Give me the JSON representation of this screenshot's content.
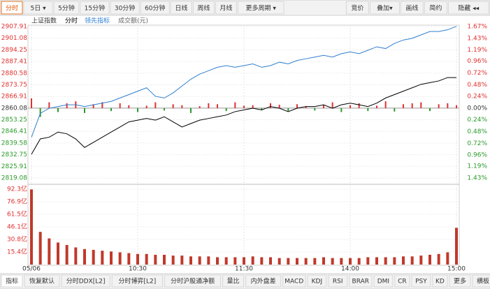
{
  "toolbar": {
    "left": [
      "分时",
      "5日 ▾",
      "5分钟",
      "15分钟",
      "30分钟",
      "60分钟",
      "日线",
      "周线",
      "月线",
      "更多周期 ▾"
    ],
    "right": [
      "竞价",
      "叠加▾",
      "画线",
      "简约",
      "隐藏 ◂◂"
    ]
  },
  "tabs": [
    "指标",
    "恢复默认",
    "分时DDX[L2]",
    "分时博弈[L2]",
    "分时沪股通净额",
    "量比",
    "内外盘差",
    "MACD",
    "KDJ",
    "RSI",
    "BRAR",
    "DMI",
    "CR",
    "PSY",
    "KD",
    "更多",
    "横板"
  ],
  "chart_data": {
    "type": "line",
    "title": "上证指数",
    "series": [
      {
        "name": "分时",
        "color": "#000000",
        "values": [
          2833,
          2842,
          2843,
          2846,
          2845,
          2842,
          2837,
          2840,
          2843,
          2846,
          2849,
          2852,
          2853,
          2854,
          2853,
          2855,
          2852,
          2849,
          2851,
          2853,
          2854,
          2855,
          2856,
          2858,
          2859,
          2860,
          2859,
          2861,
          2860,
          2858,
          2860,
          2861,
          2861,
          2862,
          2860,
          2862,
          2863,
          2862,
          2861,
          2863,
          2866,
          2868,
          2870,
          2872,
          2874,
          2875,
          2876,
          2878,
          2878
        ]
      },
      {
        "name": "领先指标",
        "color": "#2f7fd0",
        "values": [
          2843,
          2857,
          2860,
          2861,
          2862,
          2862,
          2861,
          2862,
          2863,
          2864,
          2866,
          2868,
          2870,
          2872,
          2867,
          2866,
          2869,
          2873,
          2877,
          2880,
          2882,
          2884,
          2885,
          2884,
          2885,
          2886,
          2884,
          2885,
          2887,
          2886,
          2888,
          2889,
          2890,
          2891,
          2890,
          2892,
          2893,
          2892,
          2894,
          2896,
          2895,
          2898,
          2900,
          2901,
          2903,
          2905,
          2905,
          2906,
          2908
        ]
      }
    ],
    "bars": {
      "axis": "y2",
      "up_color": "#e03030",
      "down_color": "#2a9a2a",
      "values": [
        0.2,
        -0.18,
        0.12,
        -0.08,
        0.1,
        0.14,
        -0.1,
        0.08,
        0.12,
        -0.06,
        0.1,
        0.06,
        -0.08,
        0.05,
        0.12,
        -0.05,
        0.08,
        0.06,
        -0.1,
        0.04,
        0.1,
        0.08,
        -0.06,
        0.12,
        0.05,
        0.06,
        -0.04,
        0.1,
        0.07,
        -0.06,
        0.08,
        0.04,
        -0.05,
        0.06,
        0.12,
        -0.08,
        0.06,
        0.1,
        -0.06,
        0.05,
        0.14,
        -0.07,
        0.08,
        0.1,
        0.12,
        -0.06,
        0.08,
        0.1,
        0.06
      ]
    },
    "xlim": [
      0,
      48
    ],
    "xticks": [
      {
        "value": 0,
        "label": "05/06"
      },
      {
        "value": 12,
        "label": "10:30"
      },
      {
        "value": 24,
        "label": "11:30"
      },
      {
        "value": 36,
        "label": "14:00"
      },
      {
        "value": 48,
        "label": "15:00"
      }
    ],
    "ylim": [
      2819.08,
      2907.91
    ],
    "yticks": [
      2907.91,
      2901.08,
      2894.25,
      2887.41,
      2880.58,
      2873.75,
      2866.91,
      2860.08,
      2853.25,
      2846.41,
      2839.58,
      2832.75,
      2825.91,
      2819.08
    ],
    "y2lim": [
      -1.43,
      1.67
    ],
    "y2ticks": [
      {
        "value": 1.67,
        "label": "1.67%"
      },
      {
        "value": 1.43,
        "label": "1.43%"
      },
      {
        "value": 1.19,
        "label": "1.19%"
      },
      {
        "value": 0.96,
        "label": "0.96%"
      },
      {
        "value": 0.72,
        "label": "0.72%"
      },
      {
        "value": 0.48,
        "label": "0.48%"
      },
      {
        "value": 0.24,
        "label": "0.24%"
      },
      {
        "value": 0,
        "label": "0.00%"
      },
      {
        "value": -0.24,
        "label": "0.24%"
      },
      {
        "value": -0.48,
        "label": "0.48%"
      },
      {
        "value": -0.72,
        "label": "0.72%"
      },
      {
        "value": -0.96,
        "label": "0.96%"
      },
      {
        "value": -1.19,
        "label": "1.19%"
      },
      {
        "value": -1.43,
        "label": "1.43%"
      }
    ],
    "grid": true,
    "volume": {
      "name": "成交额(元)",
      "color": "#c0392b",
      "ylim": [
        0,
        92.3
      ],
      "yticks": [
        {
          "value": 92.3,
          "label": "92.3亿"
        },
        {
          "value": 76.9,
          "label": "76.9亿"
        },
        {
          "value": 61.5,
          "label": "61.5亿"
        },
        {
          "value": 46.1,
          "label": "46.1亿"
        },
        {
          "value": 30.8,
          "label": "30.8亿"
        },
        {
          "value": 15.4,
          "label": "15.4亿"
        }
      ],
      "values": [
        92,
        40,
        32,
        27,
        24,
        21,
        19,
        18,
        17,
        16,
        15,
        14,
        13,
        13,
        12,
        12,
        11,
        11,
        10,
        10,
        10,
        9,
        9,
        9,
        9,
        10,
        9,
        9,
        8,
        8,
        8,
        8,
        8,
        9,
        8,
        8,
        8,
        8,
        9,
        9,
        9,
        9,
        10,
        10,
        11,
        12,
        13,
        15,
        45
      ]
    }
  }
}
